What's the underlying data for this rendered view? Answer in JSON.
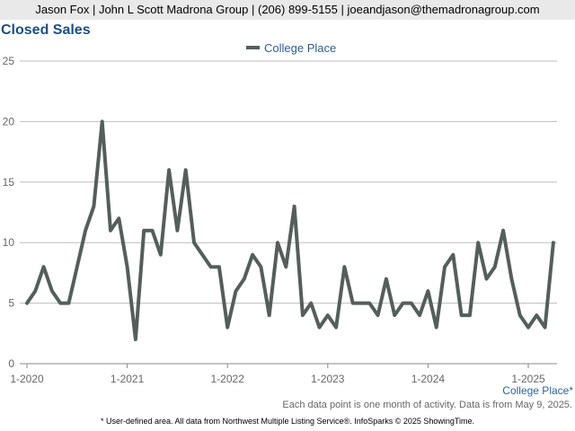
{
  "header": {
    "contact": "Jason Fox | John L Scott Madrona Group | (206) 899-5155 | joeandjason@themadronagroup.com"
  },
  "page_title": "Closed Sales",
  "footer": {
    "note": "Each data point is one month of activity. Data is from May 9, 2025.",
    "area_label": "College Place*",
    "disclaimer": "* User-defined area. All data from Northwest Multiple Listing Service®. InfoSparks © 2025 ShowingTime."
  },
  "colors": {
    "series": "#555e5b",
    "grid": "#bdbdbd",
    "title": "#1f4e79",
    "legend_text": "#2f5d8a"
  },
  "chart_data": {
    "type": "line",
    "title": "Closed Sales",
    "xlabel": "",
    "ylabel": "",
    "ylim": [
      0,
      25
    ],
    "yticks": [
      0,
      5,
      10,
      15,
      20,
      25
    ],
    "x_start": "2020-01",
    "xtick_labels": [
      "1-2020",
      "1-2021",
      "1-2022",
      "1-2023",
      "1-2024",
      "1-2025"
    ],
    "legend_position": "top-center",
    "grid": true,
    "series": [
      {
        "name": "College Place",
        "values": [
          5,
          6,
          8,
          6,
          5,
          5,
          8,
          11,
          13,
          20,
          11,
          12,
          8,
          2,
          11,
          11,
          9,
          16,
          11,
          16,
          10,
          9,
          8,
          8,
          3,
          6,
          7,
          9,
          8,
          4,
          10,
          8,
          13,
          4,
          5,
          3,
          4,
          3,
          8,
          5,
          5,
          5,
          4,
          7,
          4,
          5,
          5,
          4,
          6,
          3,
          8,
          9,
          4,
          4,
          10,
          7,
          8,
          11,
          7,
          4,
          3,
          4,
          3,
          10
        ]
      }
    ]
  }
}
